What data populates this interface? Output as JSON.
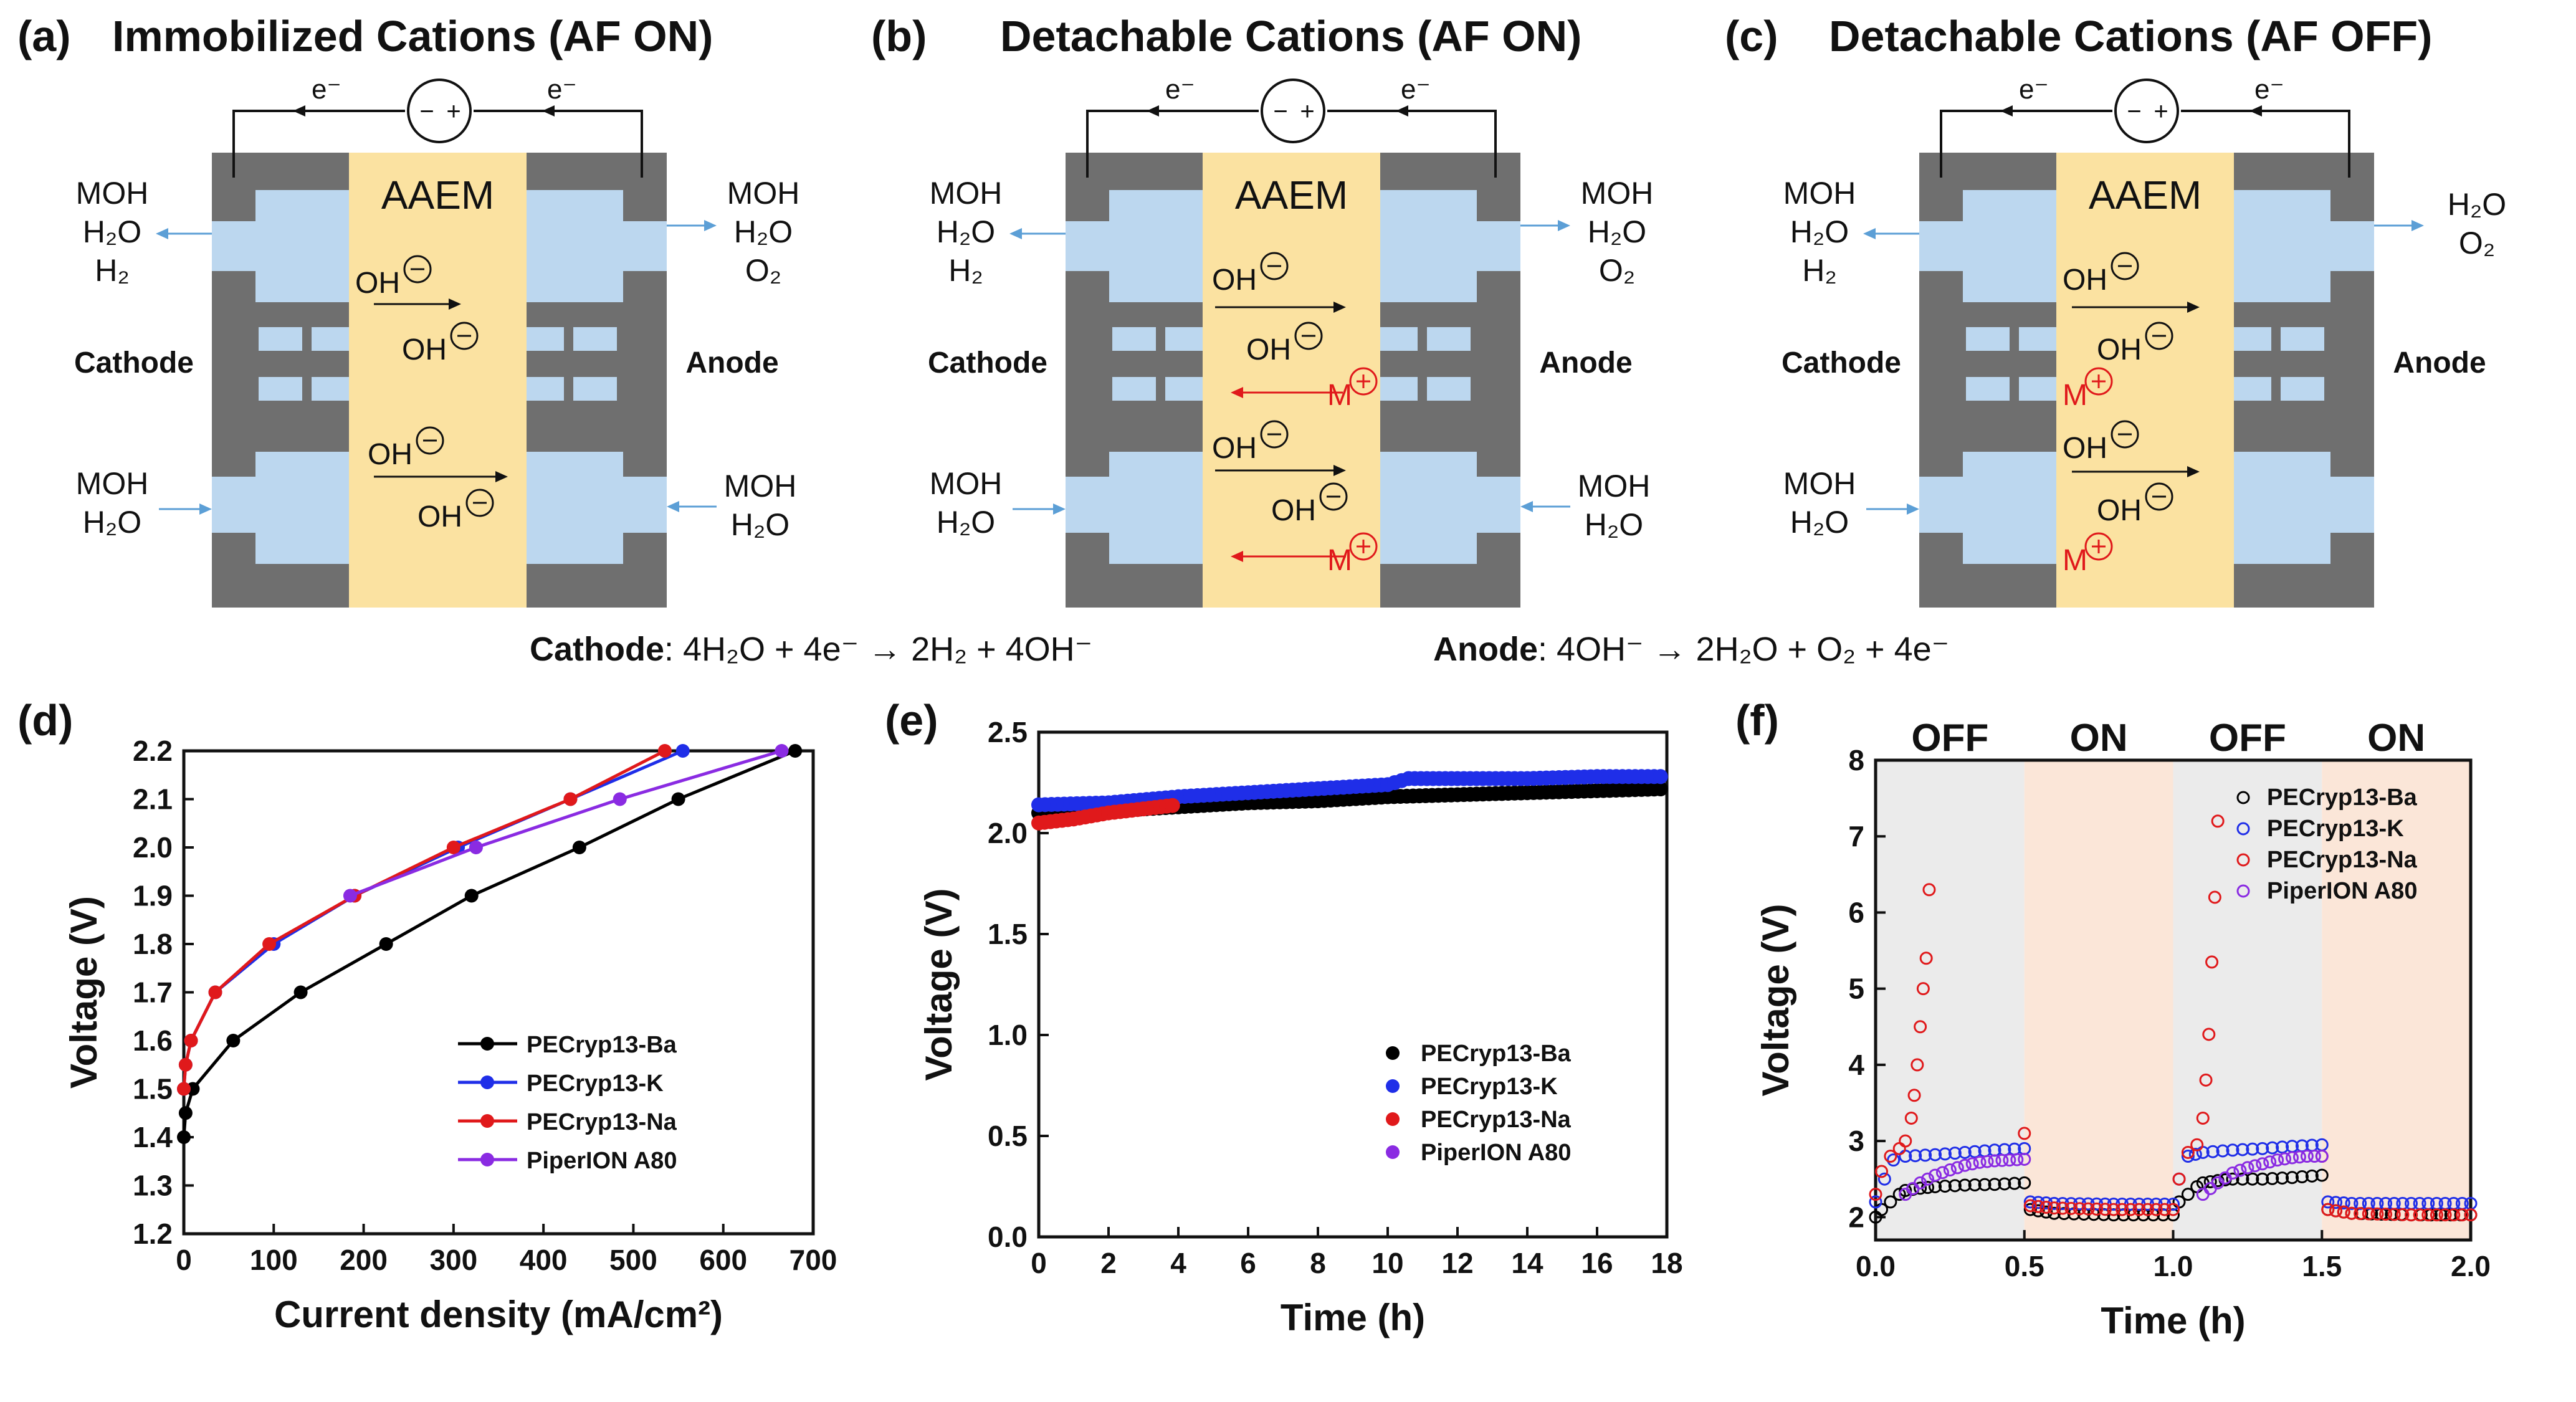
{
  "colors": {
    "electrode": "#6f6f6f",
    "channel": "#bcd7ef",
    "membrane": "#fbe2a1",
    "arrow_blue": "#5c9fd6",
    "ba": "#000000",
    "k": "#1f2ee8",
    "na": "#e0191b",
    "piperion": "#8a2be2",
    "off_shade": "#ebebeb",
    "on_shade": "#fbe6d8"
  },
  "schematics": [
    {
      "letter": "(a)",
      "title": "Immobilized Cations (AF ON)",
      "membrane": "AAEM",
      "cathode": "Cathode",
      "anode": "Anode",
      "electron": "e⁻",
      "cathode_out": [
        "MOH",
        "H₂O",
        "H₂"
      ],
      "cathode_in": [
        "MOH",
        "H₂O"
      ],
      "anode_out": [
        "MOH",
        "H₂O",
        "O₂"
      ],
      "anode_in": [
        "MOH",
        "H₂O"
      ],
      "ion": "OH",
      "cation": "M"
    },
    {
      "letter": "(b)",
      "title": "Detachable Cations (AF ON)",
      "membrane": "AAEM",
      "cathode": "Cathode",
      "anode": "Anode",
      "electron": "e⁻",
      "cathode_out": [
        "MOH",
        "H₂O",
        "H₂"
      ],
      "cathode_in": [
        "MOH",
        "H₂O"
      ],
      "anode_out": [
        "MOH",
        "H₂O",
        "O₂"
      ],
      "anode_in": [
        "MOH",
        "H₂O"
      ],
      "ion": "OH",
      "cation": "M"
    },
    {
      "letter": "(c)",
      "title": "Detachable Cations (AF OFF)",
      "membrane": "AAEM",
      "cathode": "Cathode",
      "anode": "Anode",
      "electron": "e⁻",
      "cathode_out": [
        "MOH",
        "H₂O",
        "H₂"
      ],
      "cathode_in": [
        "MOH",
        "H₂O"
      ],
      "anode_out": [
        "H₂O",
        "O₂"
      ],
      "anode_in": [],
      "ion": "OH",
      "cation": "M"
    }
  ],
  "reactions": {
    "cathode_label": "Cathode",
    "cathode_eq": ": 4H₂O + 4e⁻ → 2H₂ + 4OH⁻",
    "anode_label": "Anode",
    "anode_eq": ": 4OH⁻ → 2H₂O + O₂ + 4e⁻"
  },
  "chart_data": [
    {
      "panel": "(d)",
      "type": "line",
      "xlabel": "Current density (mA/cm²)",
      "ylabel": "Voltage (V)",
      "xlim": [
        0,
        700
      ],
      "ylim": [
        1.2,
        2.2
      ],
      "xticks": [
        "0",
        "100",
        "200",
        "300",
        "400",
        "500",
        "600",
        "700"
      ],
      "yticks": [
        "1.2",
        "1.3",
        "1.4",
        "1.5",
        "1.6",
        "1.7",
        "1.8",
        "1.9",
        "2.0",
        "2.1",
        "2.2"
      ],
      "legend": "bottom-right",
      "series": [
        {
          "name": "PECryp13-Ba",
          "x": [
            0,
            2,
            10,
            55,
            130,
            225,
            320,
            440,
            550,
            680
          ],
          "y": [
            1.4,
            1.45,
            1.5,
            1.6,
            1.7,
            1.8,
            1.9,
            2.0,
            2.1,
            2.2
          ]
        },
        {
          "name": "PECryp13-K",
          "x": [
            0,
            2,
            8,
            35,
            100,
            190,
            305,
            430,
            555
          ],
          "y": [
            1.5,
            1.55,
            1.6,
            1.7,
            1.8,
            1.9,
            2.0,
            2.1,
            2.2
          ]
        },
        {
          "name": "PECryp13-Na",
          "x": [
            0,
            2,
            8,
            35,
            95,
            190,
            300,
            430,
            535
          ],
          "y": [
            1.5,
            1.55,
            1.6,
            1.7,
            1.8,
            1.9,
            2.0,
            2.1,
            2.2
          ]
        },
        {
          "name": "PiperION A80",
          "x": [
            665,
            485,
            325,
            185
          ],
          "y": [
            2.2,
            2.1,
            2.0,
            1.9
          ]
        }
      ]
    },
    {
      "panel": "(e)",
      "type": "scatter",
      "xlabel": "Time (h)",
      "ylabel": "Voltage (V)",
      "xlim": [
        0,
        18
      ],
      "ylim": [
        0.0,
        2.5
      ],
      "xticks": [
        "0",
        "2",
        "4",
        "6",
        "8",
        "10",
        "12",
        "14",
        "16",
        "18"
      ],
      "yticks": [
        "0.0",
        "0.5",
        "1.0",
        "1.5",
        "2.0",
        "2.5"
      ],
      "legend": "bottom-right",
      "series": [
        {
          "name": "PECryp13-Ba",
          "x": [
            0,
            2,
            4,
            6,
            8,
            10,
            12,
            14,
            16,
            18
          ],
          "y": [
            2.1,
            2.11,
            2.13,
            2.15,
            2.16,
            2.18,
            2.19,
            2.2,
            2.21,
            2.22
          ]
        },
        {
          "name": "PECryp13-K",
          "x": [
            0,
            2,
            4,
            6,
            8,
            10,
            10.6,
            12,
            14,
            16,
            18
          ],
          "y": [
            2.14,
            2.15,
            2.18,
            2.2,
            2.22,
            2.24,
            2.27,
            2.27,
            2.27,
            2.28,
            2.28
          ]
        },
        {
          "name": "PECryp13-Na",
          "x": [
            0,
            1,
            2,
            3,
            4
          ],
          "y": [
            2.05,
            2.07,
            2.1,
            2.12,
            2.14
          ]
        },
        {
          "name": "PiperION A80",
          "x": [],
          "y": []
        }
      ]
    },
    {
      "panel": "(f)",
      "type": "scatter",
      "xlabel": "Time (h)",
      "ylabel": "Voltage (V)",
      "xlim": [
        0.0,
        2.0
      ],
      "ylim": [
        1.7,
        8
      ],
      "xticks": [
        "0.0",
        "0.5",
        "1.0",
        "1.5",
        "2.0"
      ],
      "yticks": [
        "2",
        "3",
        "4",
        "5",
        "6",
        "7",
        "8"
      ],
      "regions": [
        "OFF",
        "ON",
        "OFF",
        "ON"
      ],
      "legend": "top-right",
      "series": [
        {
          "name": "PECryp13-Ba",
          "x": [
            0,
            0.02,
            0.05,
            0.08,
            0.1,
            0.15,
            0.2,
            0.3,
            0.4,
            0.5,
            0.52,
            0.6,
            0.7,
            0.8,
            0.9,
            1.0,
            1.02,
            1.05,
            1.08,
            1.1,
            1.15,
            1.2,
            1.3,
            1.4,
            1.5,
            1.52,
            1.6,
            1.7,
            1.8,
            1.9,
            2.0
          ],
          "y": [
            2.0,
            2.1,
            2.2,
            2.3,
            2.35,
            2.38,
            2.4,
            2.42,
            2.43,
            2.45,
            2.1,
            2.05,
            2.04,
            2.03,
            2.03,
            2.03,
            2.2,
            2.3,
            2.4,
            2.45,
            2.48,
            2.5,
            2.5,
            2.52,
            2.55,
            2.1,
            2.05,
            2.04,
            2.03,
            2.03,
            2.03
          ]
        },
        {
          "name": "PECryp13-K",
          "x": [
            0,
            0.03,
            0.06,
            0.1,
            0.2,
            0.3,
            0.4,
            0.5,
            0.52,
            0.6,
            0.8,
            1.0,
            1.02,
            1.05,
            1.1,
            1.2,
            1.3,
            1.4,
            1.5,
            1.52,
            1.6,
            1.8,
            2.0
          ],
          "y": [
            2.2,
            2.5,
            2.75,
            2.8,
            2.82,
            2.85,
            2.88,
            2.9,
            2.2,
            2.18,
            2.17,
            2.17,
            2.5,
            2.8,
            2.85,
            2.88,
            2.9,
            2.93,
            2.95,
            2.2,
            2.18,
            2.18,
            2.18
          ]
        },
        {
          "name": "PECryp13-Na",
          "x": [
            0,
            0.02,
            0.05,
            0.08,
            0.1,
            0.12,
            0.13,
            0.14,
            0.15,
            0.16,
            0.17,
            0.18,
            0.5,
            0.52,
            0.6,
            0.8,
            1.0,
            1.02,
            1.05,
            1.08,
            1.1,
            1.11,
            1.12,
            1.13,
            1.14,
            1.15,
            1.5,
            1.52,
            1.6,
            1.8,
            2.0
          ],
          "y": [
            2.3,
            2.6,
            2.8,
            2.9,
            3.0,
            3.3,
            3.6,
            4.0,
            4.5,
            5.0,
            5.4,
            6.3,
            3.1,
            2.15,
            2.12,
            2.1,
            2.1,
            2.5,
            2.85,
            2.95,
            3.3,
            3.8,
            4.4,
            5.35,
            6.2,
            7.2,
            2.8,
            2.1,
            2.05,
            2.03,
            2.03
          ]
        },
        {
          "name": "PiperION A80",
          "x": [
            0.1,
            0.15,
            0.2,
            0.25,
            0.3,
            0.35,
            0.4,
            0.45,
            0.5,
            1.1,
            1.15,
            1.2,
            1.25,
            1.3,
            1.35,
            1.4,
            1.45,
            1.5
          ],
          "y": [
            2.3,
            2.45,
            2.55,
            2.62,
            2.68,
            2.72,
            2.74,
            2.75,
            2.76,
            2.3,
            2.45,
            2.58,
            2.65,
            2.7,
            2.75,
            2.78,
            2.8,
            2.8
          ]
        }
      ]
    }
  ]
}
